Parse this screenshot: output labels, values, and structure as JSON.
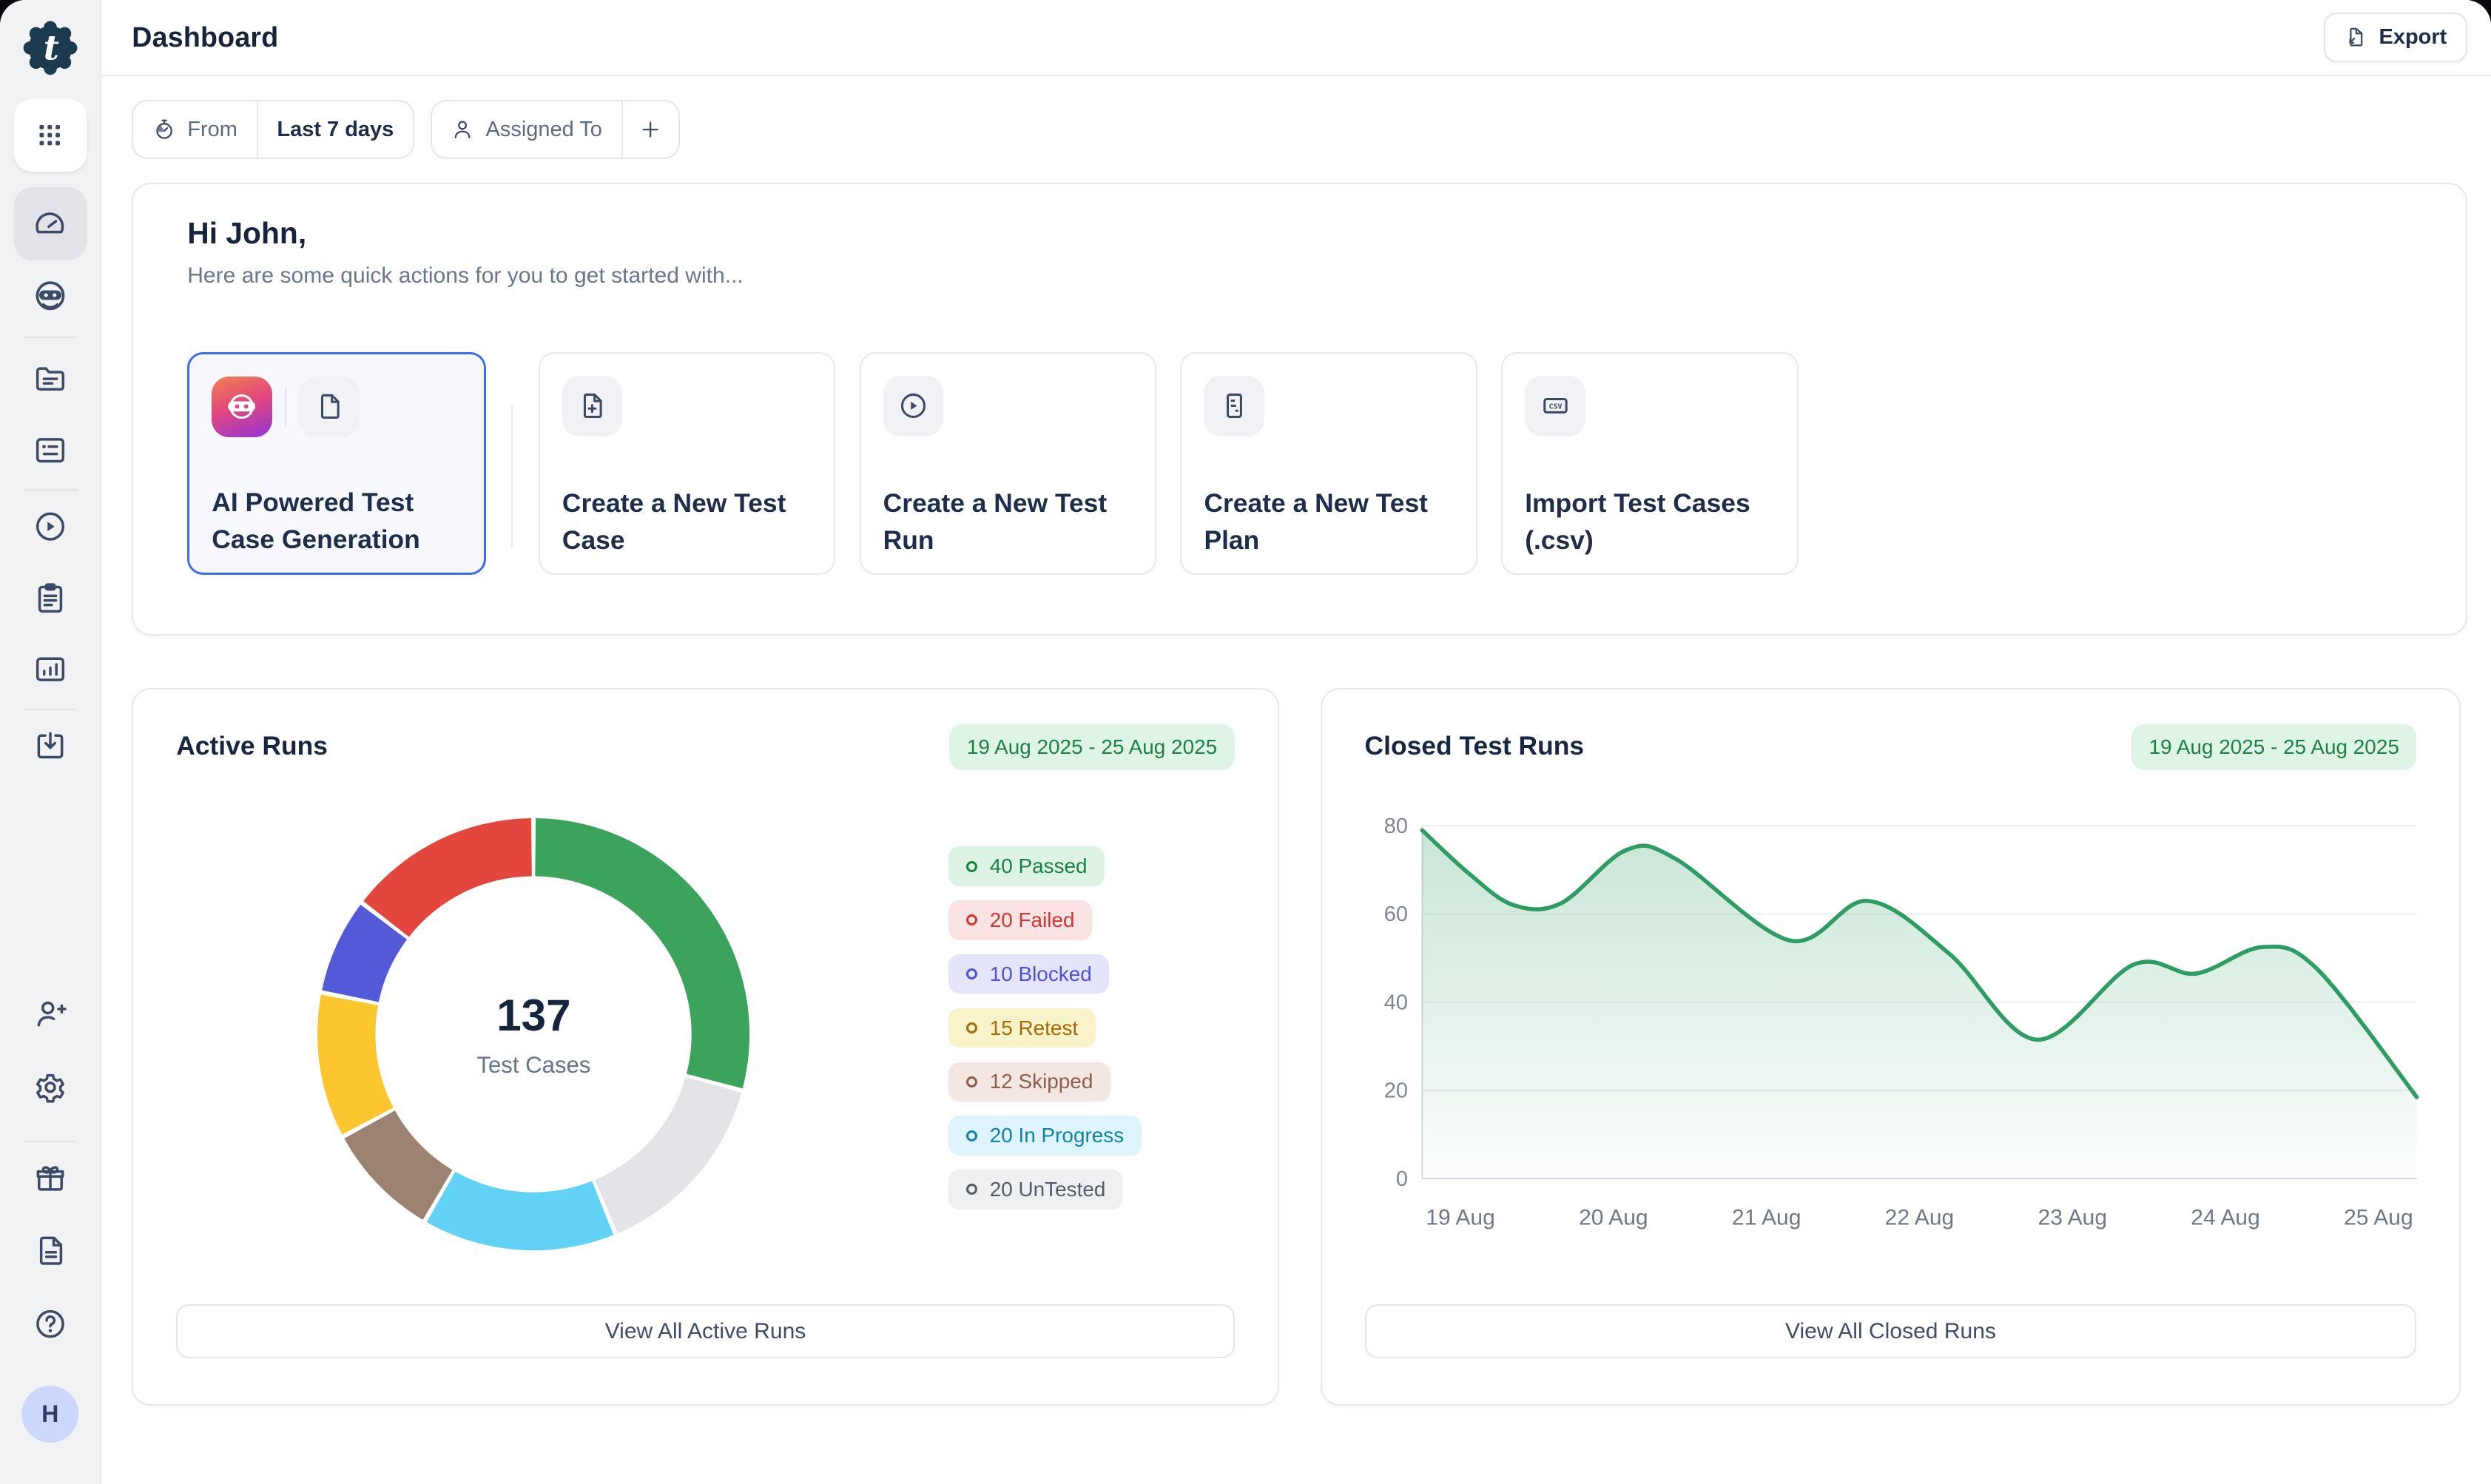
{
  "header": {
    "title": "Dashboard",
    "export_label": "Export"
  },
  "filters": {
    "from_label": "From",
    "from_value": "Last 7 days",
    "assigned_to_label": "Assigned To",
    "add_filter_label": "+"
  },
  "hero": {
    "greeting": "Hi John,",
    "subtitle": "Here are some quick actions for you to get started with...",
    "actions": [
      {
        "title": "AI Powered Test Case Generation",
        "selected": true,
        "icons": [
          "ai-robot-gradient",
          "document"
        ]
      },
      {
        "title": "Create a New Test Case",
        "icons": [
          "document-add"
        ]
      },
      {
        "title": "Create a New Test Run",
        "icons": [
          "play-circle"
        ]
      },
      {
        "title": "Create a New Test Plan",
        "icons": [
          "test-plan-document"
        ]
      },
      {
        "title": "Import Test Cases (.csv)",
        "icons": [
          "csv-file"
        ]
      }
    ]
  },
  "active_runs": {
    "title": "Active Runs",
    "date_range": "19 Aug 2025 - 25 Aug 2025",
    "center_value": "137",
    "center_label": "Test Cases",
    "view_all_label": "View All Active Runs",
    "legend": [
      {
        "count": 40,
        "label": "Passed",
        "bg": "#ddf4e4",
        "fg": "#1a7f45"
      },
      {
        "count": 20,
        "label": "Failed",
        "bg": "#fbe3e3",
        "fg": "#cf3737"
      },
      {
        "count": 10,
        "label": "Blocked",
        "bg": "#e4e4fb",
        "fg": "#4d51d8"
      },
      {
        "count": 15,
        "label": "Retest",
        "bg": "#f8f3c8",
        "fg": "#a66a08"
      },
      {
        "count": 12,
        "label": "Skipped",
        "bg": "#f4e7e1",
        "fg": "#8d5f49"
      },
      {
        "count": 20,
        "label": "In Progress",
        "bg": "#def4fc",
        "fg": "#1181a6"
      },
      {
        "count": 20,
        "label": "UnTested",
        "bg": "#eef0f2",
        "fg": "#545b66"
      }
    ]
  },
  "closed_runs": {
    "title": "Closed Test Runs",
    "date_range": "19 Aug 2025 - 25 Aug 2025",
    "view_all_label": "View All Closed Runs"
  },
  "sidebar": {
    "avatar_label": "H"
  },
  "chart_data": [
    {
      "type": "pie",
      "subtype": "donut",
      "title": "Active Runs",
      "center_total": 137,
      "center_label": "Test Cases",
      "slices": [
        {
          "label": "Passed",
          "value": 40,
          "color": "#3ba35c"
        },
        {
          "label": "UnTested",
          "value": 20,
          "color": "#e4e4e8"
        },
        {
          "label": "In Progress",
          "value": 20,
          "color": "#61d2f5"
        },
        {
          "label": "Skipped",
          "value": 12,
          "color": "#9c8270"
        },
        {
          "label": "Retest",
          "value": 15,
          "color": "#fbc62e"
        },
        {
          "label": "Blocked",
          "value": 10,
          "color": "#5459d8"
        },
        {
          "label": "Failed",
          "value": 20,
          "color": "#e2463c"
        }
      ],
      "note": "slices drawn clockwise from 12 o'clock"
    },
    {
      "type": "area",
      "title": "Closed Test Runs",
      "x_tick_labels": [
        "19 Aug",
        "20 Aug",
        "21 Aug",
        "22 Aug",
        "23 Aug",
        "24 Aug",
        "25 Aug"
      ],
      "y_ticks": [
        0,
        20,
        40,
        60,
        80
      ],
      "ylim": [
        0,
        86
      ],
      "line_color": "#2e9d63",
      "grid": "horizontal",
      "points": [
        {
          "t": 0.0,
          "v": 79
        },
        {
          "t": 0.048,
          "v": 69
        },
        {
          "t": 0.092,
          "v": 62
        },
        {
          "t": 0.14,
          "v": 62.5
        },
        {
          "t": 0.205,
          "v": 74.5
        },
        {
          "t": 0.255,
          "v": 72.5
        },
        {
          "t": 0.37,
          "v": 54
        },
        {
          "t": 0.448,
          "v": 63
        },
        {
          "t": 0.53,
          "v": 51
        },
        {
          "t": 0.618,
          "v": 31.5
        },
        {
          "t": 0.715,
          "v": 48.5
        },
        {
          "t": 0.778,
          "v": 46.5
        },
        {
          "t": 0.845,
          "v": 52.5
        },
        {
          "t": 0.9,
          "v": 47.5
        },
        {
          "t": 1.0,
          "v": 18.5
        }
      ]
    }
  ]
}
